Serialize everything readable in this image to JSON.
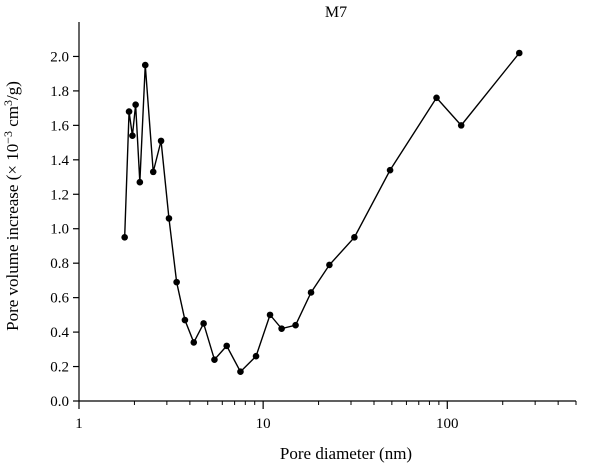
{
  "chart_data": {
    "type": "line",
    "title": "M7",
    "xlabel": "Pore diameter (nm)",
    "ylabel": {
      "prefix": "Pore volume increase (× 10",
      "exp1": "−3",
      "mid": " cm",
      "exp2": "3",
      "suffix": "/g)"
    },
    "x_scale": "log",
    "xlim": [
      1,
      500
    ],
    "ylim": [
      0,
      2.2
    ],
    "x_ticks": [
      {
        "value": 1,
        "label": "1"
      },
      {
        "value": 10,
        "label": "10"
      },
      {
        "value": 100,
        "label": "100"
      }
    ],
    "y_ticks": [
      {
        "value": 0.0,
        "label": "0.0"
      },
      {
        "value": 0.2,
        "label": "0.2"
      },
      {
        "value": 0.4,
        "label": "0.4"
      },
      {
        "value": 0.6,
        "label": "0.6"
      },
      {
        "value": 0.8,
        "label": "0.8"
      },
      {
        "value": 1.0,
        "label": "1.0"
      },
      {
        "value": 1.2,
        "label": "1.2"
      },
      {
        "value": 1.4,
        "label": "1.4"
      },
      {
        "value": 1.6,
        "label": "1.6"
      },
      {
        "value": 1.8,
        "label": "1.8"
      },
      {
        "value": 2.0,
        "label": "2.0"
      }
    ],
    "grid": false,
    "series": [
      {
        "color": "#000000",
        "marker": "circle",
        "x": [
          1.77,
          1.87,
          1.95,
          2.03,
          2.14,
          2.29,
          2.53,
          2.79,
          3.08,
          3.39,
          3.76,
          4.2,
          4.75,
          5.44,
          6.34,
          7.53,
          9.15,
          10.9,
          12.6,
          15.0,
          18.2,
          22.9,
          31.3,
          48.9,
          87.4,
          119,
          246
        ],
        "y": [
          0.95,
          1.68,
          1.54,
          1.72,
          1.27,
          1.95,
          1.33,
          1.51,
          1.06,
          0.69,
          0.47,
          0.34,
          0.45,
          0.24,
          0.32,
          0.17,
          0.26,
          0.5,
          0.42,
          0.44,
          0.63,
          0.79,
          0.95,
          1.34,
          1.76,
          1.6,
          2.02
        ]
      }
    ]
  }
}
